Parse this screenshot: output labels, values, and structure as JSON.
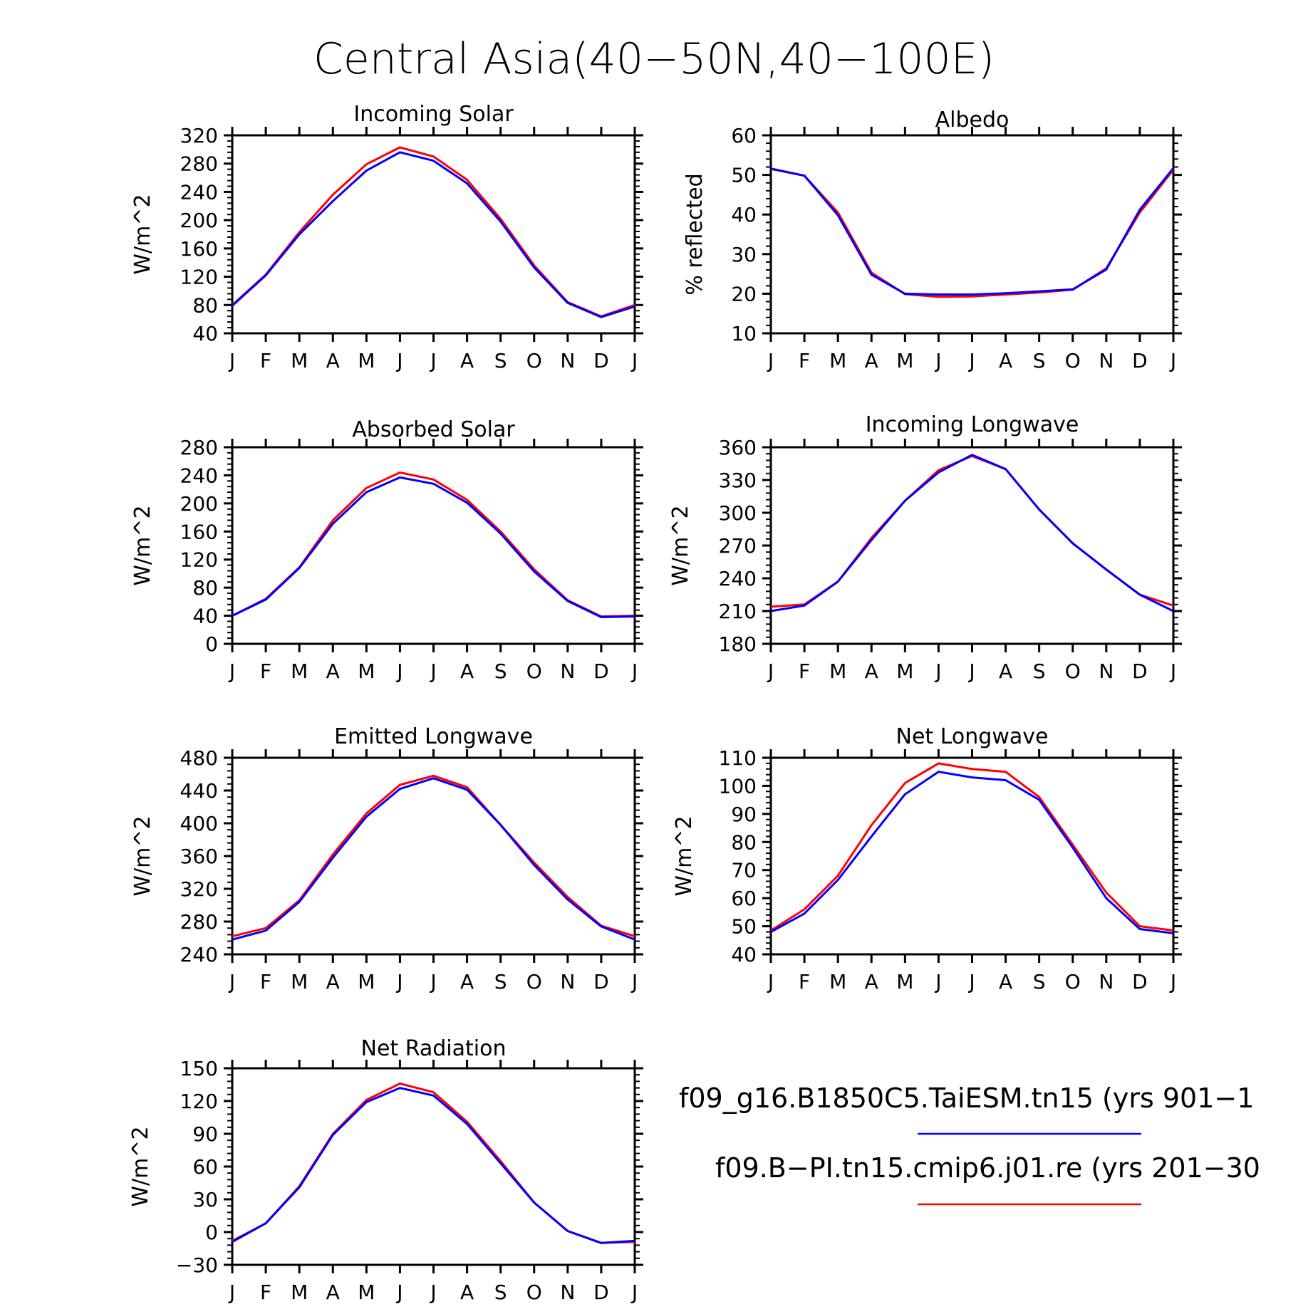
{
  "figure": {
    "title": "Central Asia(40−50N,40−100E)"
  },
  "colors": {
    "series_blue": "#0000ff",
    "series_red": "#ff0000"
  },
  "legend": [
    {
      "label": "f09_g16.B1850C5.TaiESM.tn15 (yrs 901−1",
      "color": "#0000ff"
    },
    {
      "label": "f09.B−PI.tn15.cmip6.j01.re (yrs 201−30",
      "color": "#ff0000"
    }
  ],
  "chart_data": [
    {
      "type": "line",
      "title": "Incoming Solar",
      "ylabel": "W/m^2",
      "categories": [
        "J",
        "F",
        "M",
        "A",
        "M",
        "J",
        "J",
        "A",
        "S",
        "O",
        "N",
        "D",
        "J"
      ],
      "ylim": [
        40,
        320
      ],
      "yticks": [
        40,
        80,
        120,
        160,
        200,
        240,
        280,
        320
      ],
      "series": [
        {
          "color": "#ff0000",
          "values": [
            80,
            123,
            183,
            236,
            279,
            303,
            290,
            257,
            202,
            136,
            84,
            64,
            80
          ]
        },
        {
          "color": "#0000ff",
          "values": [
            79,
            122,
            180,
            227,
            270,
            296,
            284,
            252,
            198,
            133,
            83,
            63,
            78
          ]
        }
      ]
    },
    {
      "type": "line",
      "title": "Albedo",
      "ylabel": "% reflected",
      "categories": [
        "J",
        "F",
        "M",
        "A",
        "M",
        "J",
        "J",
        "A",
        "S",
        "O",
        "N",
        "D",
        "J"
      ],
      "ylim": [
        10,
        60
      ],
      "yticks": [
        10,
        20,
        30,
        40,
        50,
        60
      ],
      "series": [
        {
          "color": "#ff0000",
          "values": [
            51.5,
            49.8,
            40.5,
            25.3,
            19.9,
            19.2,
            19.3,
            19.8,
            20.3,
            21.0,
            26.4,
            40.5,
            51.3
          ]
        },
        {
          "color": "#0000ff",
          "values": [
            51.6,
            49.8,
            39.8,
            24.8,
            20.0,
            19.8,
            19.8,
            20.1,
            20.6,
            21.1,
            26.1,
            41.2,
            51.7
          ]
        }
      ]
    },
    {
      "type": "line",
      "title": "Absorbed Solar",
      "ylabel": "W/m^2",
      "categories": [
        "J",
        "F",
        "M",
        "A",
        "M",
        "J",
        "J",
        "A",
        "S",
        "O",
        "N",
        "D",
        "J"
      ],
      "ylim": [
        0,
        280
      ],
      "yticks": [
        0,
        40,
        80,
        120,
        160,
        200,
        240,
        280
      ],
      "series": [
        {
          "color": "#ff0000",
          "values": [
            40,
            64,
            109,
            176,
            222,
            244,
            234,
            205,
            160,
            106,
            62,
            39,
            40
          ]
        },
        {
          "color": "#0000ff",
          "values": [
            40,
            63,
            108,
            171,
            216,
            237,
            228,
            201,
            157,
            103,
            61,
            38,
            39
          ]
        }
      ]
    },
    {
      "type": "line",
      "title": "Incoming Longwave",
      "ylabel": "W/m^2",
      "categories": [
        "J",
        "F",
        "M",
        "A",
        "M",
        "J",
        "J",
        "A",
        "S",
        "O",
        "N",
        "D",
        "J"
      ],
      "ylim": [
        180,
        360
      ],
      "yticks": [
        180,
        210,
        240,
        270,
        300,
        330,
        360
      ],
      "series": [
        {
          "color": "#ff0000",
          "values": [
            214,
            216,
            237,
            277,
            311,
            339,
            352,
            340,
            303,
            272,
            248,
            225,
            215
          ]
        },
        {
          "color": "#0000ff",
          "values": [
            210,
            215,
            237,
            275,
            311,
            337,
            353,
            340,
            303,
            272,
            248,
            225,
            210
          ]
        }
      ]
    },
    {
      "type": "line",
      "title": "Emitted Longwave",
      "ylabel": "W/m^2",
      "categories": [
        "J",
        "F",
        "M",
        "A",
        "M",
        "J",
        "J",
        "A",
        "S",
        "O",
        "N",
        "D",
        "J"
      ],
      "ylim": [
        240,
        480
      ],
      "yticks": [
        240,
        280,
        320,
        360,
        400,
        440,
        480
      ],
      "series": [
        {
          "color": "#ff0000",
          "values": [
            262,
            272,
            306,
            362,
            412,
            447,
            458,
            444,
            398,
            352,
            310,
            275,
            262
          ]
        },
        {
          "color": "#0000ff",
          "values": [
            258,
            269,
            304,
            358,
            408,
            442,
            455,
            441,
            398,
            349,
            307,
            274,
            258
          ]
        }
      ]
    },
    {
      "type": "line",
      "title": "Net Longwave",
      "ylabel": "W/m^2",
      "categories": [
        "J",
        "F",
        "M",
        "A",
        "M",
        "J",
        "J",
        "A",
        "S",
        "O",
        "N",
        "D",
        "J"
      ],
      "ylim": [
        40,
        110
      ],
      "yticks": [
        40,
        50,
        60,
        70,
        80,
        90,
        100,
        110
      ],
      "series": [
        {
          "color": "#ff0000",
          "values": [
            48.5,
            56,
            68,
            86,
            101,
            108,
            106,
            105,
            96,
            79,
            62,
            50,
            48.5
          ]
        },
        {
          "color": "#0000ff",
          "values": [
            48,
            54.5,
            66.5,
            82,
            97,
            105,
            103,
            102,
            95,
            78,
            60,
            49,
            47.5
          ]
        }
      ]
    },
    {
      "type": "line",
      "title": "Net Radiation",
      "ylabel": "W/m^2",
      "categories": [
        "J",
        "F",
        "M",
        "A",
        "M",
        "J",
        "J",
        "A",
        "S",
        "O",
        "N",
        "D",
        "J"
      ],
      "ylim": [
        -30,
        150
      ],
      "yticks": [
        -30,
        0,
        30,
        60,
        90,
        120,
        150
      ],
      "series": [
        {
          "color": "#ff0000",
          "values": [
            -8,
            8,
            42,
            90,
            121,
            136,
            128,
            101,
            65,
            27,
            1,
            -10,
            -9
          ]
        },
        {
          "color": "#0000ff",
          "values": [
            -9,
            8,
            41,
            89,
            119,
            132,
            125,
            99,
            63,
            27,
            1,
            -10,
            -8
          ]
        }
      ]
    }
  ]
}
